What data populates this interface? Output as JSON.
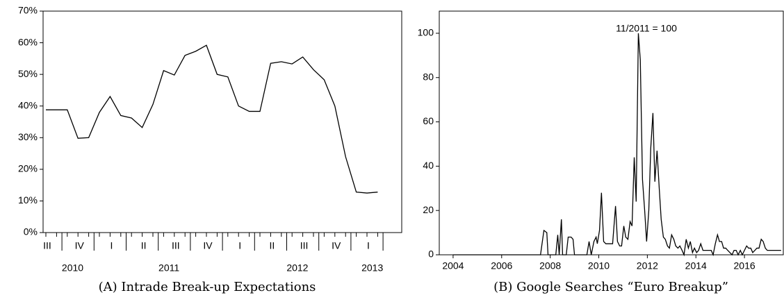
{
  "chart_data": [
    {
      "type": "line",
      "caption": "(A) Intrade Break-up Expectations",
      "categories": [
        "III",
        null,
        null,
        "IV",
        null,
        null,
        "I",
        null,
        null,
        "II",
        null,
        null,
        "III",
        null,
        null,
        "IV",
        null,
        null,
        "I",
        null,
        null,
        "II",
        null,
        null,
        "III",
        null,
        null,
        "IV",
        null,
        null,
        "I",
        null
      ],
      "year_labels": [
        "2010",
        null,
        null,
        null,
        null,
        null,
        "2011",
        null,
        null,
        null,
        null,
        null,
        null,
        null,
        null,
        null,
        null,
        null,
        "2012",
        null,
        null,
        null,
        null,
        null,
        null,
        null,
        null,
        null,
        null,
        null,
        "2013",
        null
      ],
      "values": [
        38.8,
        38.8,
        38.8,
        29.8,
        30,
        38,
        43,
        37,
        36.2,
        33.2,
        40.5,
        51.2,
        49.8,
        56,
        57.3,
        59.2,
        50,
        49.2,
        40,
        38.3,
        38.3,
        53.5,
        54,
        53.3,
        55.5,
        51.5,
        48.3,
        40,
        24,
        12.8,
        12.5,
        12.8
      ],
      "color": "#000000",
      "ylim": [
        0,
        70
      ],
      "yticks": [
        {
          "value": 0,
          "label": "0%"
        },
        {
          "value": 10,
          "label": "10%"
        },
        {
          "value": 20,
          "label": "20%"
        },
        {
          "value": 30,
          "label": "30%"
        },
        {
          "value": 40,
          "label": "40%"
        },
        {
          "value": 50,
          "label": "50%"
        },
        {
          "value": 60,
          "label": "60%"
        },
        {
          "value": 70,
          "label": "70%"
        }
      ]
    },
    {
      "type": "line",
      "caption": "(B) Google Searches “Euro Breakup”",
      "annotation": "11/2011 = 100",
      "x": [
        2004.0,
        2007.6,
        2007.74,
        2007.86,
        2007.91,
        2008.23,
        2008.31,
        2008.37,
        2008.46,
        2008.51,
        2008.66,
        2008.74,
        2008.86,
        2008.94,
        2009.0,
        2009.51,
        2009.6,
        2009.69,
        2009.8,
        2009.89,
        2009.94,
        2010.03,
        2010.11,
        2010.2,
        2010.29,
        2010.46,
        2010.57,
        2010.69,
        2010.77,
        2010.86,
        2010.94,
        2011.03,
        2011.11,
        2011.2,
        2011.29,
        2011.37,
        2011.46,
        2011.54,
        2011.63,
        2011.71,
        2011.8,
        2011.89,
        2011.97,
        2012.06,
        2012.14,
        2012.23,
        2012.31,
        2012.4,
        2012.49,
        2012.57,
        2012.66,
        2012.74,
        2012.83,
        2012.91,
        2013.0,
        2013.09,
        2013.17,
        2013.26,
        2013.34,
        2013.43,
        2013.51,
        2013.6,
        2013.69,
        2013.77,
        2013.86,
        2013.94,
        2014.03,
        2014.11,
        2014.2,
        2014.29,
        2014.37,
        2014.46,
        2014.54,
        2014.63,
        2014.71,
        2014.8,
        2014.89,
        2014.97,
        2015.06,
        2015.14,
        2015.23,
        2015.31,
        2015.4,
        2015.49,
        2015.57,
        2015.66,
        2015.74,
        2015.83,
        2015.91,
        2016.0,
        2016.09,
        2016.17,
        2016.26,
        2016.34,
        2016.43,
        2016.51,
        2016.6,
        2016.69,
        2016.77,
        2016.86,
        2016.94,
        2017.03,
        2017.51
      ],
      "values": [
        0,
        0,
        11,
        10,
        0,
        0,
        9,
        0,
        16,
        0,
        0,
        8,
        8,
        7,
        0,
        0,
        6,
        0,
        6,
        8,
        5,
        11,
        28,
        6,
        5,
        5,
        5,
        22,
        6,
        4,
        4,
        13,
        8,
        7,
        15,
        13,
        44,
        24,
        100,
        88,
        34,
        20,
        6,
        20,
        48,
        64,
        33,
        47,
        30,
        16,
        8,
        7,
        4,
        3,
        9,
        7,
        4,
        3,
        4,
        2,
        0,
        7,
        3,
        6,
        1,
        3,
        1,
        2,
        5,
        2,
        2,
        2,
        2,
        2,
        0,
        5,
        9,
        6,
        6,
        3,
        3,
        2,
        1,
        0,
        2,
        2,
        0,
        2,
        0,
        2,
        4,
        3,
        3,
        1,
        2,
        3,
        3,
        7,
        6,
        3,
        2,
        2,
        2
      ],
      "color": "#000000",
      "xlim": [
        2003.43,
        2017.6
      ],
      "xticks": [
        2004,
        2006,
        2008,
        2010,
        2012,
        2014,
        2016
      ],
      "ylim": [
        0,
        110
      ],
      "yticks": [
        0,
        20,
        40,
        60,
        80,
        100
      ]
    }
  ]
}
